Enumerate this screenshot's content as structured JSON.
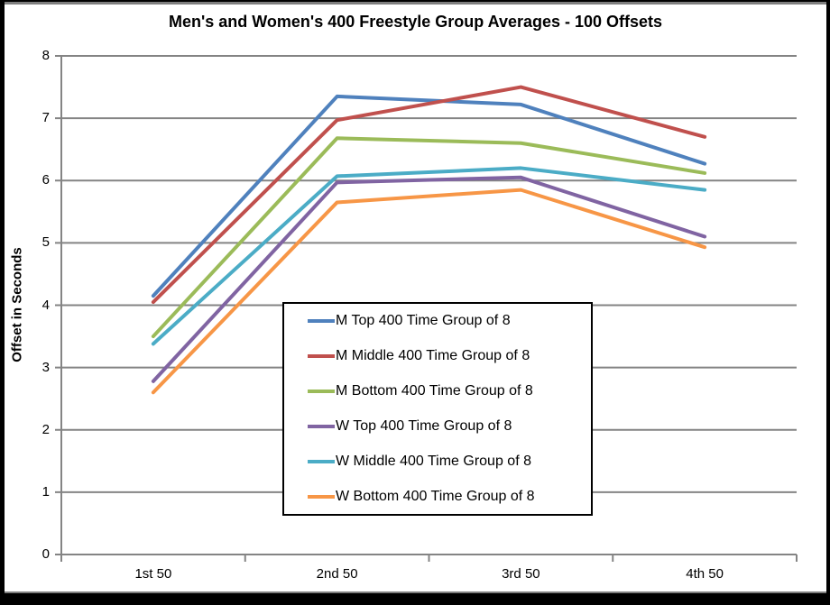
{
  "chart_data": {
    "type": "line",
    "title": "Men's and Women's 400 Freestyle Group Averages - 100 Offsets",
    "xlabel": "",
    "ylabel": "Offset in Seconds",
    "categories": [
      "1st 50",
      "2nd 50",
      "3rd 50",
      "4th 50"
    ],
    "series": [
      {
        "name": "M Top 400 Time Group of 8",
        "color": "#4F81BD",
        "values": [
          4.15,
          7.35,
          7.22,
          6.27
        ]
      },
      {
        "name": "M Middle 400 Time Group of 8",
        "color": "#C0504D",
        "values": [
          4.05,
          6.97,
          7.5,
          6.7
        ]
      },
      {
        "name": "M Bottom 400 Time Group of 8",
        "color": "#9BBB59",
        "values": [
          3.5,
          6.68,
          6.6,
          6.12
        ]
      },
      {
        "name": "W Top 400 Time Group of 8",
        "color": "#8064A2",
        "values": [
          2.78,
          5.97,
          6.05,
          5.1
        ]
      },
      {
        "name": "W Middle 400 Time Group of 8",
        "color": "#4BACC6",
        "values": [
          3.38,
          6.07,
          6.2,
          5.85
        ]
      },
      {
        "name": "W Bottom 400 Time Group of 8",
        "color": "#F79646",
        "values": [
          2.6,
          5.65,
          5.85,
          4.93
        ]
      }
    ],
    "ylim": [
      0,
      8
    ],
    "yticks": [
      0,
      1,
      2,
      3,
      4,
      5,
      6,
      7,
      8
    ],
    "grid": true,
    "legend_position": "center",
    "axis_color": "#848484",
    "line_width": 4
  }
}
